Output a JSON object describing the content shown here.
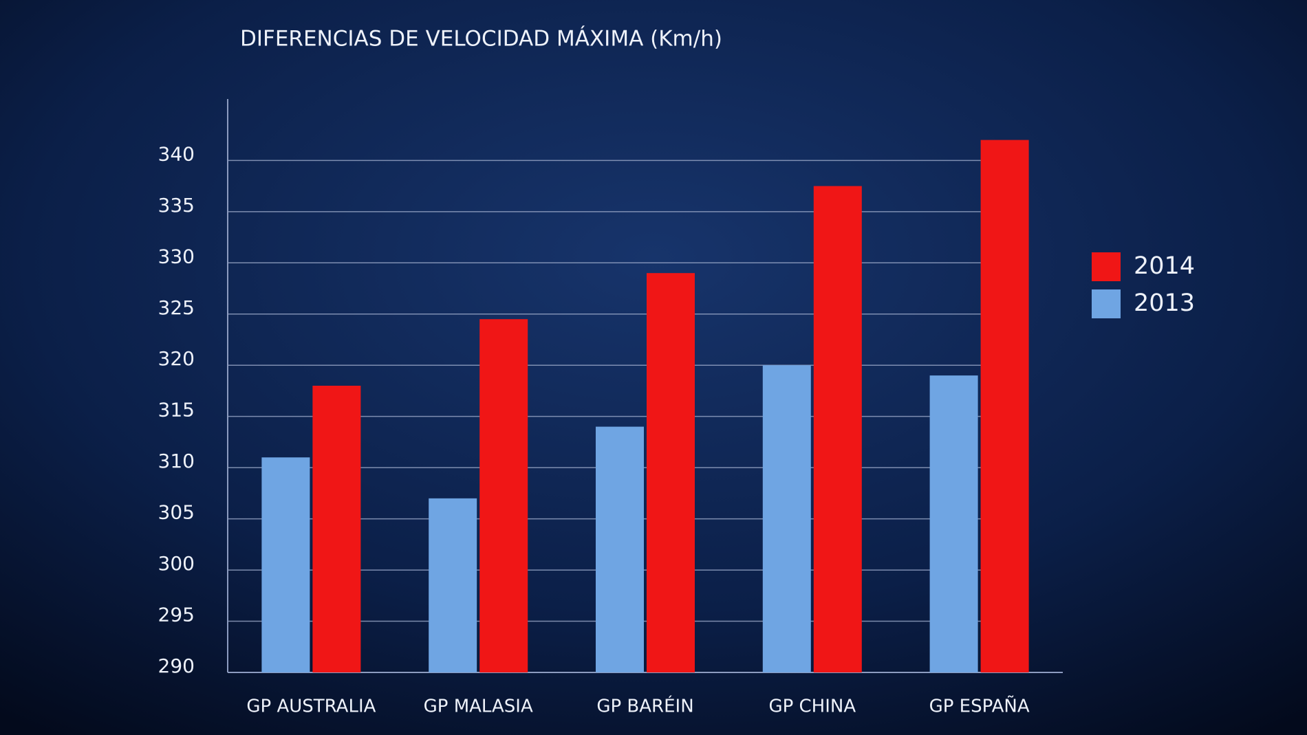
{
  "chart_data": {
    "type": "bar",
    "title": "DIFERENCIAS DE VELOCIDAD MÁXIMA  (Km/h)",
    "categories": [
      "GP AUSTRALIA",
      "GP MALASIA",
      "GP BARÉIN",
      "GP CHINA",
      "GP ESPAÑA"
    ],
    "series": [
      {
        "name": "2013",
        "color": "#6fa5e3",
        "values": [
          311,
          307,
          314,
          320,
          319
        ]
      },
      {
        "name": "2014",
        "color": "#f01616",
        "values": [
          318,
          324.5,
          329,
          337.5,
          342
        ]
      }
    ],
    "ylim": [
      290,
      346
    ],
    "yticks": [
      290,
      295,
      300,
      305,
      310,
      315,
      320,
      325,
      330,
      335,
      340
    ],
    "grid": true,
    "legend": "right"
  }
}
